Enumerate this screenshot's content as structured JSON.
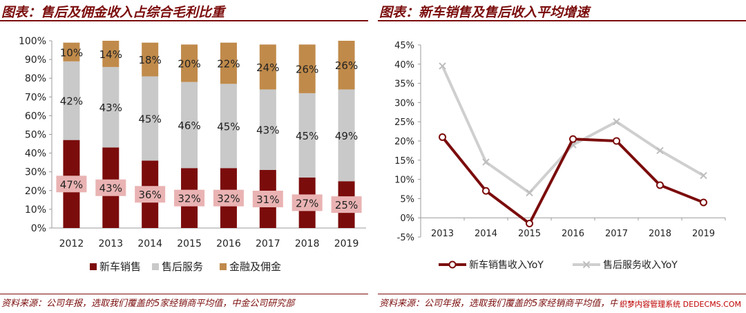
{
  "left": {
    "title": "图表：售后及佣金收入占综合毛利比重",
    "source": "资料来源：公司年报，选取我们覆盖的5家经销商平均值，中金公司研究部"
  },
  "right": {
    "title": "图表：新车销售及售后收入平均增速",
    "source": "资料来源：公司年报，选取我们覆盖的5家经销商平均值，中金公司研究部"
  },
  "watermark": "织梦内容管理系统 DEDECMS.COM",
  "colors": {
    "new_car": "#7b0c0c",
    "aftersales": "#c9c9c9",
    "finance": "#c08a4a",
    "label_box": "#eab3b3",
    "accent": "#7b0c0c"
  },
  "chart_data": [
    {
      "type": "bar",
      "stacked": true,
      "percent": true,
      "categories": [
        "2012",
        "2013",
        "2014",
        "2015",
        "2016",
        "2017",
        "2018",
        "2019"
      ],
      "series": [
        {
          "name": "新车销售",
          "values": [
            47,
            43,
            36,
            32,
            32,
            31,
            27,
            25
          ],
          "color": "#7b0c0c"
        },
        {
          "name": "售后服务",
          "values": [
            42,
            43,
            45,
            46,
            45,
            43,
            45,
            49
          ],
          "color": "#c9c9c9"
        },
        {
          "name": "金融及佣金",
          "values": [
            10,
            14,
            18,
            20,
            22,
            24,
            26,
            26
          ],
          "color": "#c08a4a"
        }
      ],
      "value_labels": {
        "新车销售": [
          "47%",
          "43%",
          "36%",
          "32%",
          "32%",
          "31%",
          "27%",
          "25%"
        ],
        "售后服务": [
          "42%",
          "43%",
          "45%",
          "46%",
          "45%",
          "43%",
          "45%",
          "49%"
        ],
        "金融及佣金": [
          "10%",
          "14%",
          "18%",
          "20%",
          "22%",
          "24%",
          "26%",
          "26%"
        ]
      },
      "ylim": [
        0,
        100
      ],
      "yticks": [
        "0%",
        "10%",
        "20%",
        "30%",
        "40%",
        "50%",
        "60%",
        "70%",
        "80%",
        "90%",
        "100%"
      ],
      "legend": "bottom",
      "grid": false
    },
    {
      "type": "line",
      "x": [
        "2013",
        "2014",
        "2015",
        "2016",
        "2017",
        "2018",
        "2019"
      ],
      "series": [
        {
          "name": "新车销售收入YoY",
          "values": [
            21,
            7,
            -1.5,
            20.5,
            20,
            8.5,
            4
          ],
          "color": "#7b0c0c",
          "marker": "circle"
        },
        {
          "name": "售后服务收入YoY",
          "values": [
            39.5,
            14.5,
            6.5,
            19,
            25,
            17.5,
            11
          ],
          "color": "#cfcfcf",
          "marker": "x"
        }
      ],
      "ylim": [
        -5,
        45
      ],
      "yticks": [
        "-5%",
        "0%",
        "5%",
        "10%",
        "15%",
        "20%",
        "25%",
        "30%",
        "35%",
        "40%",
        "45%"
      ],
      "legend": "bottom",
      "grid": false
    }
  ]
}
